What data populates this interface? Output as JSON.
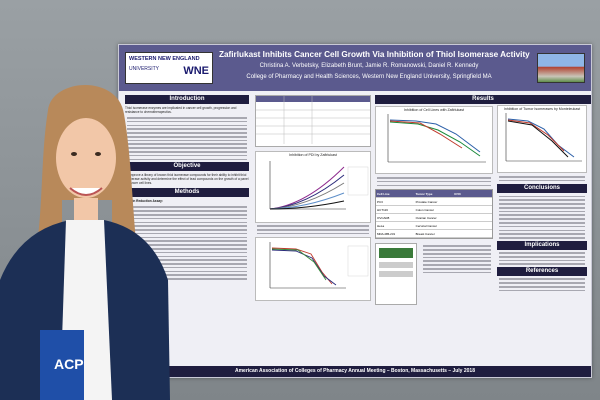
{
  "poster": {
    "logo_line1": "WESTERN NEW ENGLAND",
    "logo_line2": "UNIVERSITY",
    "logo_mark": "WNE",
    "title": "Zafirlukast Inhibits Cancer Cell Growth Via Inhibition of Thiol Isomerase Activity",
    "authors": "Christina A. Verbetsky, Elizabeth Brunt, Jamie R. Romanowski, Daniel R. Kennedy",
    "affiliation": "College of Pharmacy and Health Sciences, Western New England University, Springfield MA",
    "sections": {
      "introduction": "Introduction",
      "objective": "Objective",
      "methods": "Methods",
      "results": "Results",
      "conclusions": "Conclusions",
      "implications": "Implications",
      "references": "References"
    },
    "intro_text": "Thiol isomerase enzymes are implicated in cancer cell growth, progression and resistance to chemotherapeutics.",
    "objective_text": "To improve a library of known thiol isomerase compounds for their ability to inhibit thiol isomerase activity and determine the effect of lead compounds on the growth of a panel of cancer cell lines.",
    "methods_heading": "Insulin Reduction Assay:",
    "chart1_title": "Inhibition of Cell Lines with Zafirlukast",
    "chart2_title": "Inhibition of Tumor Isomerases by Monteleukast",
    "chart3_title": "Inhibition of PDI by Zafirlukast",
    "cell_table": {
      "headers": [
        "Cell Line",
        "Tumor Type",
        "IC50"
      ],
      "rows": [
        [
          "PC3",
          "Prostate Cancer",
          ""
        ],
        [
          "HCT116",
          "Colon Cancer",
          ""
        ],
        [
          "OVCAR8",
          "Ovarian Cancer",
          ""
        ],
        [
          "HeLa",
          "Cervical Cancer",
          ""
        ],
        [
          "MDA-MB-231",
          "Breast Cancer",
          ""
        ]
      ]
    },
    "footer": "American Association of Colleges of Pharmacy Annual Meeting – Boston, Massachusetts – July 2018"
  },
  "badge_text": "ACP",
  "colors": {
    "banner": "#5b5a8e",
    "section_header": "#1f1d3f",
    "blazer": "#1c2f55",
    "hair": "#b8895a"
  }
}
